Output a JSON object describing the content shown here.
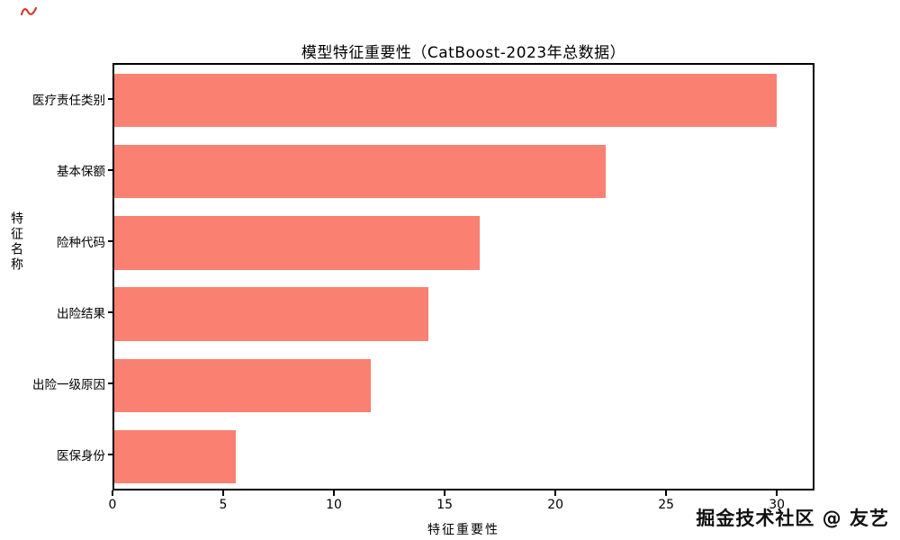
{
  "chart_data": {
    "type": "bar",
    "orientation": "horizontal",
    "title": "模型特征重要性（CatBoost-2023年总数据）",
    "xlabel": "特征重要性",
    "ylabel": "特征名称",
    "categories": [
      "医疗责任类别",
      "基本保额",
      "险种代码",
      "出险结果",
      "出险一级原因",
      "医保身份"
    ],
    "values": [
      29.9,
      22.2,
      16.5,
      14.2,
      11.6,
      5.5
    ],
    "x_ticks": [
      0,
      5,
      10,
      15,
      20,
      25,
      30
    ],
    "xlim": [
      0,
      31.7
    ],
    "grid": false,
    "legend": null,
    "bar_color": "#fa8072",
    "axis_color": "#000000",
    "background_color": "#ffffff"
  },
  "watermark": "掘金技术社区 @ 友艺"
}
